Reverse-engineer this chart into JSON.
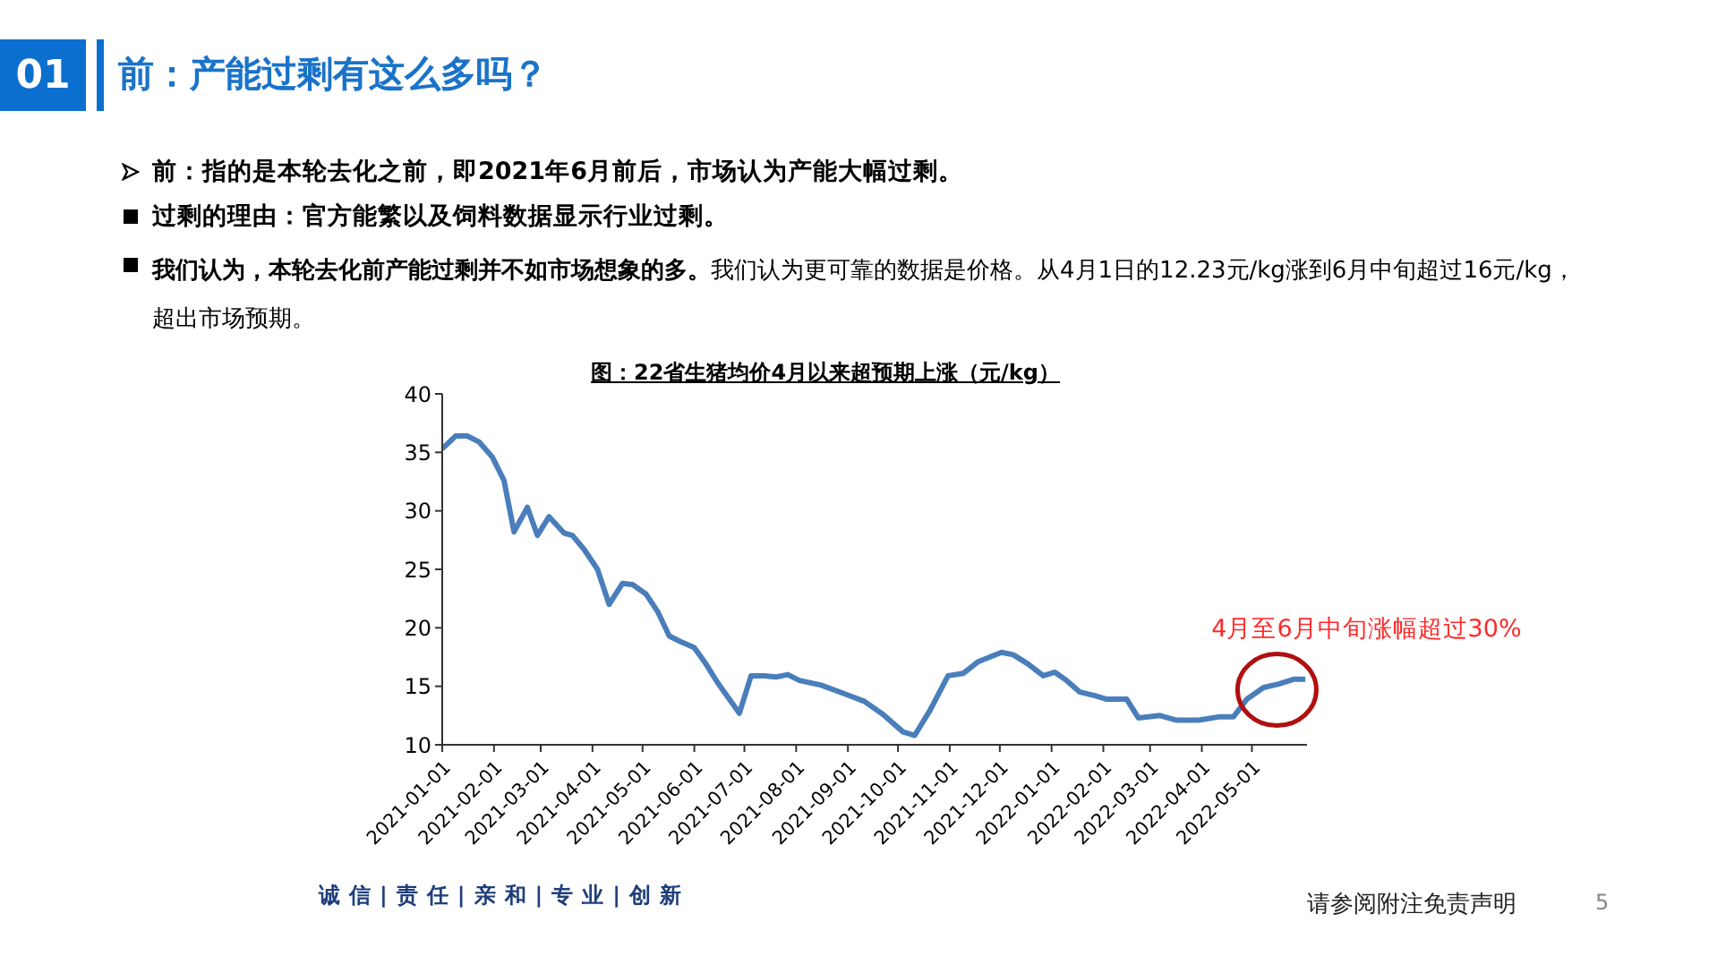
{
  "chart_data": {
    "type": "line",
    "title": "图：22省生猪均价4月以来超预期上涨（元/kg）",
    "x": [
      "2021-01-01",
      "2021-01-09",
      "2021-01-16",
      "2021-01-23",
      "2021-01-31",
      "2021-02-07",
      "2021-02-13",
      "2021-02-21",
      "2021-02-27",
      "2021-03-06",
      "2021-03-15",
      "2021-03-20",
      "2021-03-27",
      "2021-04-04",
      "2021-04-11",
      "2021-04-19",
      "2021-04-25",
      "2021-05-03",
      "2021-05-10",
      "2021-05-17",
      "2021-05-24",
      "2021-06-01",
      "2021-06-08",
      "2021-06-15",
      "2021-06-28",
      "2021-07-05",
      "2021-07-13",
      "2021-07-20",
      "2021-07-27",
      "2021-08-03",
      "2021-08-16",
      "2021-08-31",
      "2021-09-11",
      "2021-09-22",
      "2021-10-04",
      "2021-10-11",
      "2021-10-20",
      "2021-10-31",
      "2021-11-09",
      "2021-11-18",
      "2021-12-02",
      "2021-12-09",
      "2021-12-18",
      "2021-12-27",
      "2022-01-03",
      "2022-01-10",
      "2022-01-18",
      "2022-01-27",
      "2022-02-03",
      "2022-02-15",
      "2022-02-22",
      "2022-03-07",
      "2022-03-17",
      "2022-03-30",
      "2022-04-12",
      "2022-04-20",
      "2022-04-28",
      "2022-05-08",
      "2022-05-17",
      "2022-05-26",
      "2022-06-02"
    ],
    "series": [
      {
        "color": "#4a7ebb",
        "values": [
          35.3,
          36.4,
          36.4,
          35.9,
          34.6,
          32.6,
          28.2,
          30.3,
          27.9,
          29.5,
          28.1,
          27.9,
          26.7,
          25.0,
          22.0,
          23.8,
          23.7,
          22.9,
          21.4,
          19.3,
          18.8,
          18.3,
          16.9,
          15.3,
          12.7,
          15.9,
          15.9,
          15.8,
          16.0,
          15.5,
          15.1,
          14.3,
          13.7,
          12.6,
          11.1,
          10.8,
          12.9,
          15.9,
          16.1,
          17.1,
          17.9,
          17.7,
          16.9,
          15.9,
          16.2,
          15.5,
          14.5,
          14.2,
          13.9,
          13.9,
          12.3,
          12.5,
          12.1,
          12.1,
          12.4,
          12.4,
          13.9,
          14.9,
          15.2,
          15.6,
          15.6
        ]
      }
    ],
    "xlim": [
      "2021-01-01",
      "2022-06-03"
    ],
    "xticks": [
      "2021-01-01",
      "2021-02-01",
      "2021-03-01",
      "2021-04-01",
      "2021-05-01",
      "2021-06-01",
      "2021-07-01",
      "2021-08-01",
      "2021-09-01",
      "2021-10-01",
      "2021-11-01",
      "2021-12-01",
      "2022-01-01",
      "2022-02-01",
      "2022-03-01",
      "2022-04-01",
      "2022-05-01"
    ],
    "ylim": [
      10,
      40
    ],
    "yticks": [
      10,
      15,
      20,
      25,
      30,
      35,
      40
    ],
    "grid": false,
    "legend": false,
    "marker": "none",
    "line_style": "solid",
    "annotations": [
      "01",
      "前：产能过剩有这么多吗？",
      "前：指的是本轮去化之前，即2021年6月前后，市场认为产能大幅过剩。",
      "过剩的理由：官方能繁以及饲料数据显示行业过剩。",
      "我们认为，本轮去化前产能过剩并不如市场想象的多。",
      "我们认为更可靠的数据是价格。从4月1日的12.23元/kg涨到6月中旬超过16元/kg，超出市场预期。",
      {
        "text": "4月至6月中旬涨幅超过30%",
        "x": "2022-05-16",
        "y": 14.7
      },
      "诚信|责任|亲和|专业|创新",
      "请参阅附注免责声明",
      "5"
    ]
  }
}
